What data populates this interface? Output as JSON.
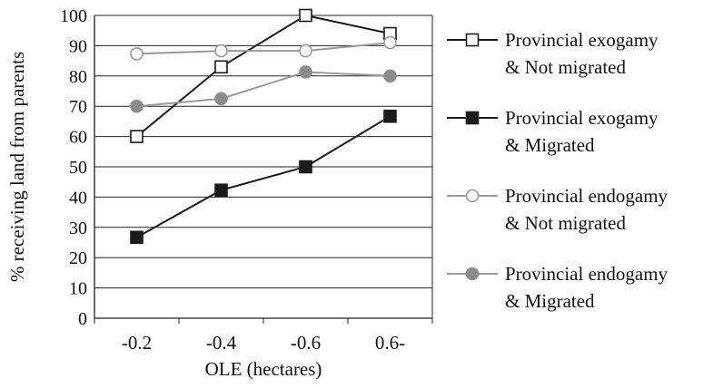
{
  "chart_data": {
    "type": "line",
    "title": "",
    "xlabel": "OLE (hectares)",
    "ylabel": "% receiving land from parents",
    "categories": [
      "-0.2",
      "-0.4",
      "-0.6",
      "0.6-"
    ],
    "ylim": [
      0,
      100
    ],
    "yticks": [
      0,
      10,
      20,
      30,
      40,
      50,
      60,
      70,
      80,
      90,
      100
    ],
    "grid": "horizontal",
    "legend_position": "right",
    "series": [
      {
        "name_line1": "Provincial exogamy",
        "name_line2": "& Not migrated",
        "values": [
          60,
          83,
          100,
          94
        ],
        "marker": "square",
        "line_color": "#1a1a1a",
        "marker_fill": "#ffffff",
        "marker_stroke": "#1a1a1a"
      },
      {
        "name_line1": "Provincial exogamy",
        "name_line2": "& Migrated",
        "values": [
          26.7,
          42.3,
          50,
          66.7
        ],
        "marker": "square",
        "line_color": "#1a1a1a",
        "marker_fill": "#1a1a1a",
        "marker_stroke": "#1a1a1a"
      },
      {
        "name_line1": "Provincial endogamy",
        "name_line2": "& Not migrated",
        "values": [
          87.3,
          88.3,
          88.3,
          91
        ],
        "marker": "circle",
        "line_color": "#9a9a9a",
        "marker_fill": "#ffffff",
        "marker_stroke": "#9a9a9a"
      },
      {
        "name_line1": "Provincial endogamy",
        "name_line2": "& Migrated",
        "values": [
          70,
          72.5,
          81.3,
          80
        ],
        "marker": "circle",
        "line_color": "#9a9a9a",
        "marker_fill": "#8c8c8c",
        "marker_stroke": "#8c8c8c"
      }
    ]
  }
}
